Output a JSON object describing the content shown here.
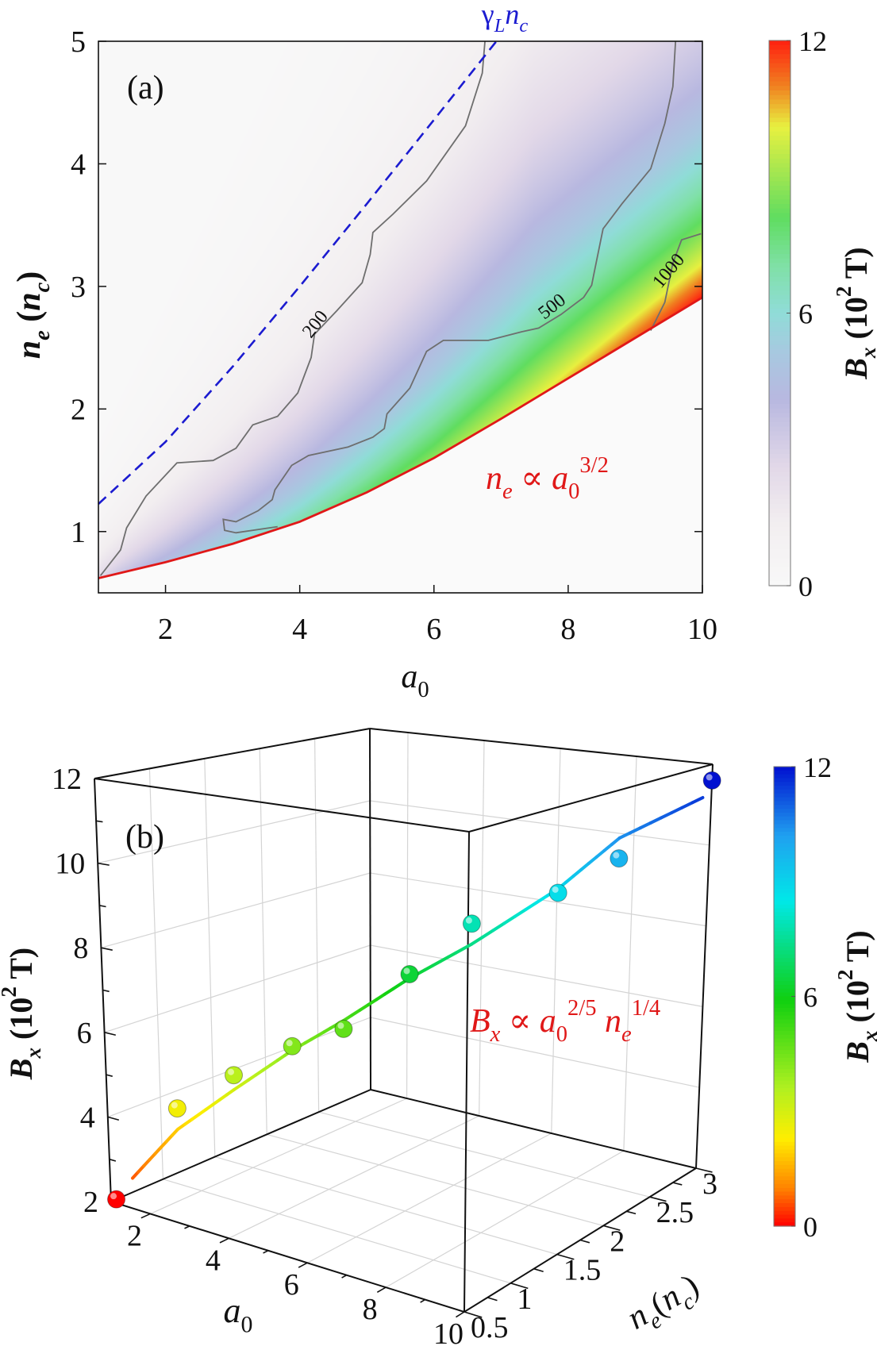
{
  "chart_data": [
    {
      "type": "heatmap",
      "panel_label": "(a)",
      "xlabel": [
        [
          "a",
          "i"
        ],
        [
          "0",
          "sub"
        ]
      ],
      "ylabel": [
        [
          "n",
          "i"
        ],
        [
          "e",
          "sub-i"
        ],
        [
          " (",
          ""
        ],
        [
          "n",
          "i"
        ],
        [
          "c",
          "sub-i"
        ],
        [
          ")",
          ""
        ]
      ],
      "xlim": [
        1,
        10
      ],
      "ylim": [
        0.5,
        5
      ],
      "xticks": [
        2,
        4,
        6,
        8,
        10
      ],
      "yticks": [
        1,
        2,
        3,
        4,
        5
      ],
      "colorbar": {
        "label": [
          [
            "B",
            "i"
          ],
          [
            "x",
            "sub-i"
          ],
          [
            " (10",
            ""
          ],
          [
            "2",
            "sup"
          ],
          [
            " T)",
            ""
          ]
        ],
        "range": [
          0,
          12
        ],
        "ticks": [
          0,
          6,
          12
        ],
        "colormap": [
          [
            0,
            "#f8f8f8"
          ],
          [
            1.4,
            "#f2eef0"
          ],
          [
            2.6,
            "#e2d8e8"
          ],
          [
            4.1,
            "#b8b8e0"
          ],
          [
            5.1,
            "#a8c8e0"
          ],
          [
            6,
            "#90dcd8"
          ],
          [
            7,
            "#80e0a8"
          ],
          [
            8.1,
            "#60dd60"
          ],
          [
            10.1,
            "#e8f040"
          ],
          [
            11,
            "#f08020"
          ],
          [
            12,
            "#ff2010"
          ]
        ]
      },
      "contours": [
        {
          "level": 200,
          "label": "200",
          "points": [
            [
              1.03,
              0.64
            ],
            [
              1.33,
              0.85
            ],
            [
              1.42,
              1.03
            ],
            [
              1.71,
              1.29
            ],
            [
              2.17,
              1.56
            ],
            [
              2.71,
              1.58
            ],
            [
              3.05,
              1.68
            ],
            [
              3.3,
              1.87
            ],
            [
              3.67,
              1.94
            ],
            [
              3.97,
              2.13
            ],
            [
              4.17,
              2.42
            ],
            [
              4.22,
              2.61
            ],
            [
              4.55,
              2.8
            ],
            [
              4.93,
              3.03
            ],
            [
              5.05,
              3.26
            ],
            [
              5.09,
              3.44
            ],
            [
              5.39,
              3.59
            ],
            [
              5.89,
              3.86
            ],
            [
              6.47,
              4.31
            ],
            [
              6.72,
              4.74
            ],
            [
              6.76,
              5.0
            ]
          ]
        },
        {
          "level": 500,
          "label": "500",
          "points": [
            [
              3.67,
              1.04
            ],
            [
              3.05,
              0.99
            ],
            [
              2.88,
              1.01
            ],
            [
              2.86,
              1.1
            ],
            [
              3.05,
              1.08
            ],
            [
              3.38,
              1.17
            ],
            [
              3.59,
              1.26
            ],
            [
              3.63,
              1.34
            ],
            [
              3.88,
              1.54
            ],
            [
              4.13,
              1.62
            ],
            [
              4.72,
              1.69
            ],
            [
              5.09,
              1.77
            ],
            [
              5.26,
              1.84
            ],
            [
              5.3,
              1.96
            ],
            [
              5.64,
              2.17
            ],
            [
              5.89,
              2.47
            ],
            [
              6.14,
              2.56
            ],
            [
              6.81,
              2.56
            ],
            [
              7.31,
              2.63
            ],
            [
              7.56,
              2.66
            ],
            [
              7.89,
              2.77
            ],
            [
              8.23,
              2.91
            ],
            [
              8.35,
              3.01
            ],
            [
              8.39,
              3.12
            ],
            [
              8.52,
              3.47
            ],
            [
              8.81,
              3.68
            ],
            [
              9.23,
              3.96
            ],
            [
              9.44,
              4.33
            ],
            [
              9.56,
              4.63
            ],
            [
              9.6,
              5.0
            ]
          ]
        },
        {
          "level": 1000,
          "label": "1000",
          "points": [
            [
              9.23,
              2.64
            ],
            [
              9.44,
              2.87
            ],
            [
              9.56,
              3.19
            ],
            [
              9.69,
              3.38
            ],
            [
              9.98,
              3.43
            ]
          ]
        }
      ],
      "dashed_curve": {
        "label": [
          [
            "γ",
            ""
          ],
          [
            "L",
            "sub-i"
          ],
          [
            "n",
            "i"
          ],
          [
            "c",
            "sub-i"
          ]
        ],
        "color": "#1b1bd0",
        "points": [
          [
            1,
            1.225
          ],
          [
            2,
            1.732
          ],
          [
            3,
            2.345
          ],
          [
            4,
            3.0
          ],
          [
            5,
            3.674
          ],
          [
            6,
            4.359
          ],
          [
            6.93,
            5.0
          ]
        ]
      },
      "boundary_curve": {
        "label": [
          [
            "n",
            "i"
          ],
          [
            "e",
            "sub-i"
          ],
          [
            " ∝ ",
            ""
          ],
          [
            "a",
            "i"
          ],
          [
            "0",
            "sub"
          ],
          [
            "3/2",
            "sup"
          ]
        ],
        "color": "#e01818",
        "points": [
          [
            1,
            0.62
          ],
          [
            2,
            0.75
          ],
          [
            3,
            0.9
          ],
          [
            4,
            1.08
          ],
          [
            5,
            1.32
          ],
          [
            6,
            1.6
          ],
          [
            7,
            1.92
          ],
          [
            8,
            2.25
          ],
          [
            9,
            2.58
          ],
          [
            10,
            2.91
          ]
        ]
      }
    },
    {
      "type": "scatter3d",
      "panel_label": "(b)",
      "axes": {
        "x": {
          "label": [
            [
              "a",
              "i"
            ],
            [
              "0",
              "sub"
            ]
          ],
          "lim": [
            1,
            10
          ],
          "ticks": [
            2,
            4,
            6,
            8,
            10
          ]
        },
        "y": {
          "label": [
            [
              "n",
              "i"
            ],
            [
              "e",
              "sub-i"
            ],
            [
              "(",
              ""
            ],
            [
              "n",
              "i"
            ],
            [
              "c",
              "sub-i"
            ],
            [
              ")",
              ""
            ]
          ],
          "lim": [
            0.5,
            3
          ],
          "ticks": [
            0.5,
            1,
            1.5,
            2,
            2.5,
            3
          ]
        },
        "z": {
          "label": [
            [
              "B",
              "i"
            ],
            [
              "x",
              "sub-i"
            ],
            [
              " (10",
              ""
            ],
            [
              "2",
              "sup"
            ],
            [
              " T)",
              ""
            ]
          ],
          "lim": [
            2,
            12
          ],
          "ticks": [
            2,
            4,
            6,
            8,
            10,
            12
          ]
        }
      },
      "grid": true,
      "points": [
        {
          "a0": 1.0,
          "ne": 0.55,
          "Bx": 2.0
        },
        {
          "a0": 1.7,
          "ne": 0.9,
          "Bx": 4.0
        },
        {
          "a0": 2.5,
          "ne": 1.15,
          "Bx": 4.75
        },
        {
          "a0": 3.35,
          "ne": 1.4,
          "Bx": 5.4
        },
        {
          "a0": 4.15,
          "ne": 1.6,
          "Bx": 5.8
        },
        {
          "a0": 5.2,
          "ne": 1.85,
          "Bx": 7.1
        },
        {
          "a0": 6.2,
          "ne": 2.08,
          "Bx": 8.3
        },
        {
          "a0": 7.6,
          "ne": 2.4,
          "Bx": 9.0
        },
        {
          "a0": 8.6,
          "ne": 2.62,
          "Bx": 9.8
        },
        {
          "a0": 10.0,
          "ne": 3.0,
          "Bx": 11.6
        }
      ],
      "fit": {
        "label": [
          [
            "B",
            "i"
          ],
          [
            "x",
            "sub-i"
          ],
          [
            " ∝ ",
            ""
          ],
          [
            "a",
            "i"
          ],
          [
            "0",
            "sub"
          ],
          [
            "2/5",
            "sup"
          ],
          [
            " ",
            ""
          ],
          [
            "n",
            "i"
          ],
          [
            "e",
            "sub-i"
          ],
          [
            "1/4",
            "sup"
          ]
        ],
        "label_color": "#e01818",
        "points": [
          [
            1.25,
            0.62,
            2.5
          ],
          [
            1.7,
            0.9,
            3.5
          ],
          [
            2.5,
            1.15,
            4.4
          ],
          [
            3.35,
            1.4,
            5.3
          ],
          [
            4.15,
            1.6,
            6.0
          ],
          [
            5.2,
            1.85,
            7.0
          ],
          [
            6.2,
            2.08,
            7.8
          ],
          [
            7.6,
            2.4,
            9.1
          ],
          [
            8.6,
            2.62,
            10.3
          ],
          [
            9.9,
            2.95,
            11.2
          ]
        ]
      },
      "colorbar": {
        "label": [
          [
            "B",
            "i"
          ],
          [
            "x",
            "sub-i"
          ],
          [
            " (10",
            ""
          ],
          [
            "2",
            "sup"
          ],
          [
            " T)",
            ""
          ]
        ],
        "range": [
          0,
          12
        ],
        "ticks": [
          0,
          6,
          12
        ],
        "colormap": [
          [
            0,
            "#ff0000"
          ],
          [
            0.96,
            "#ff8000"
          ],
          [
            2.28,
            "#ffee00"
          ],
          [
            3.6,
            "#b0f020"
          ],
          [
            5.9,
            "#10d010"
          ],
          [
            8.5,
            "#00e8e8"
          ],
          [
            10.2,
            "#20a0f0"
          ],
          [
            12,
            "#0010d0"
          ]
        ]
      }
    }
  ]
}
